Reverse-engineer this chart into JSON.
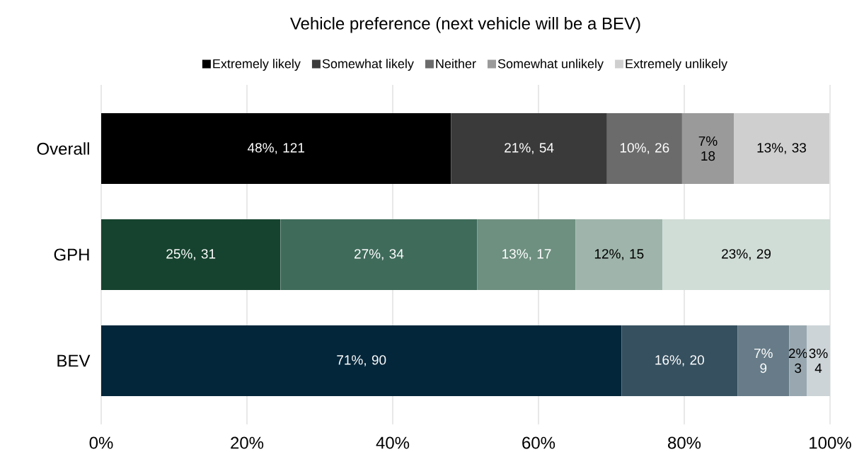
{
  "chart_data": {
    "type": "bar",
    "orientation": "horizontal",
    "stacked": true,
    "title": "Vehicle preference (next vehicle will be a BEV)",
    "categories": [
      "Overall",
      "GPH",
      "BEV"
    ],
    "series": [
      {
        "name": "Extremely likely",
        "colors": [
          "#000000",
          "#16432f",
          "#03263a"
        ],
        "values": [
          48.0,
          24.6,
          71.4
        ],
        "value_labels": [
          "48%, 121",
          "25%, 31",
          "71%, 90"
        ]
      },
      {
        "name": "Somewhat likely",
        "colors": [
          "#3a3a3a",
          "#3f6b5b",
          "#36505f"
        ],
        "values": [
          21.4,
          27.0,
          15.9
        ],
        "value_labels": [
          "21%, 54",
          "27%, 34",
          "16%, 20"
        ]
      },
      {
        "name": "Neither",
        "colors": [
          "#6b6b6b",
          "#6e9080",
          "#677c88"
        ],
        "values": [
          10.3,
          13.5,
          7.1
        ],
        "value_labels": [
          "10%, 26",
          "13%, 17",
          "7% 9"
        ]
      },
      {
        "name": "Somewhat unlikely",
        "colors": [
          "#9a9a9a",
          "#9fb5ab",
          "#99a8b0"
        ],
        "values": [
          7.1,
          11.9,
          2.4
        ],
        "value_labels": [
          "7% 18",
          "12%, 15",
          "2% 3"
        ]
      },
      {
        "name": "Extremely unlikely",
        "colors": [
          "#cfcfcf",
          "#d0dcd6",
          "#ccd4d8"
        ],
        "values": [
          13.1,
          23.0,
          3.2
        ],
        "value_labels": [
          "13%, 33",
          "23%, 29",
          "3% 4"
        ]
      }
    ],
    "xlim": [
      0,
      100
    ],
    "xticks": [
      {
        "value": 0,
        "label": "0%"
      },
      {
        "value": 20,
        "label": "20%"
      },
      {
        "value": 40,
        "label": "40%"
      },
      {
        "value": 60,
        "label": "60%"
      },
      {
        "value": 80,
        "label": "80%"
      },
      {
        "value": 100,
        "label": "100%"
      }
    ],
    "grid": "x",
    "legend": "top"
  }
}
